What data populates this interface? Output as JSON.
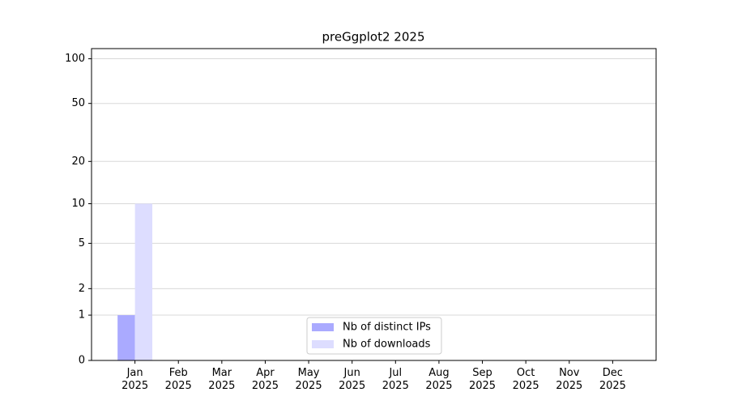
{
  "chart_data": {
    "type": "bar",
    "title": "preGgplot2 2025",
    "categories": [
      "Jan\n2025",
      "Feb\n2025",
      "Mar\n2025",
      "Apr\n2025",
      "May\n2025",
      "Jun\n2025",
      "Jul\n2025",
      "Aug\n2025",
      "Sep\n2025",
      "Oct\n2025",
      "Nov\n2025",
      "Dec\n2025"
    ],
    "series": [
      {
        "name": "Nb of distinct IPs",
        "color": "#aaaaff",
        "values": [
          1,
          0,
          0,
          0,
          0,
          0,
          0,
          0,
          0,
          0,
          0,
          0
        ]
      },
      {
        "name": "Nb of downloads",
        "color": "#ddddff",
        "values": [
          10,
          0,
          0,
          0,
          0,
          0,
          0,
          0,
          0,
          0,
          0,
          0
        ]
      }
    ],
    "yscale": "log1p",
    "ylim": [
      0,
      117
    ],
    "yticks": [
      0,
      1,
      2,
      5,
      10,
      20,
      50,
      100
    ],
    "grid": true,
    "legend": "bottom"
  }
}
